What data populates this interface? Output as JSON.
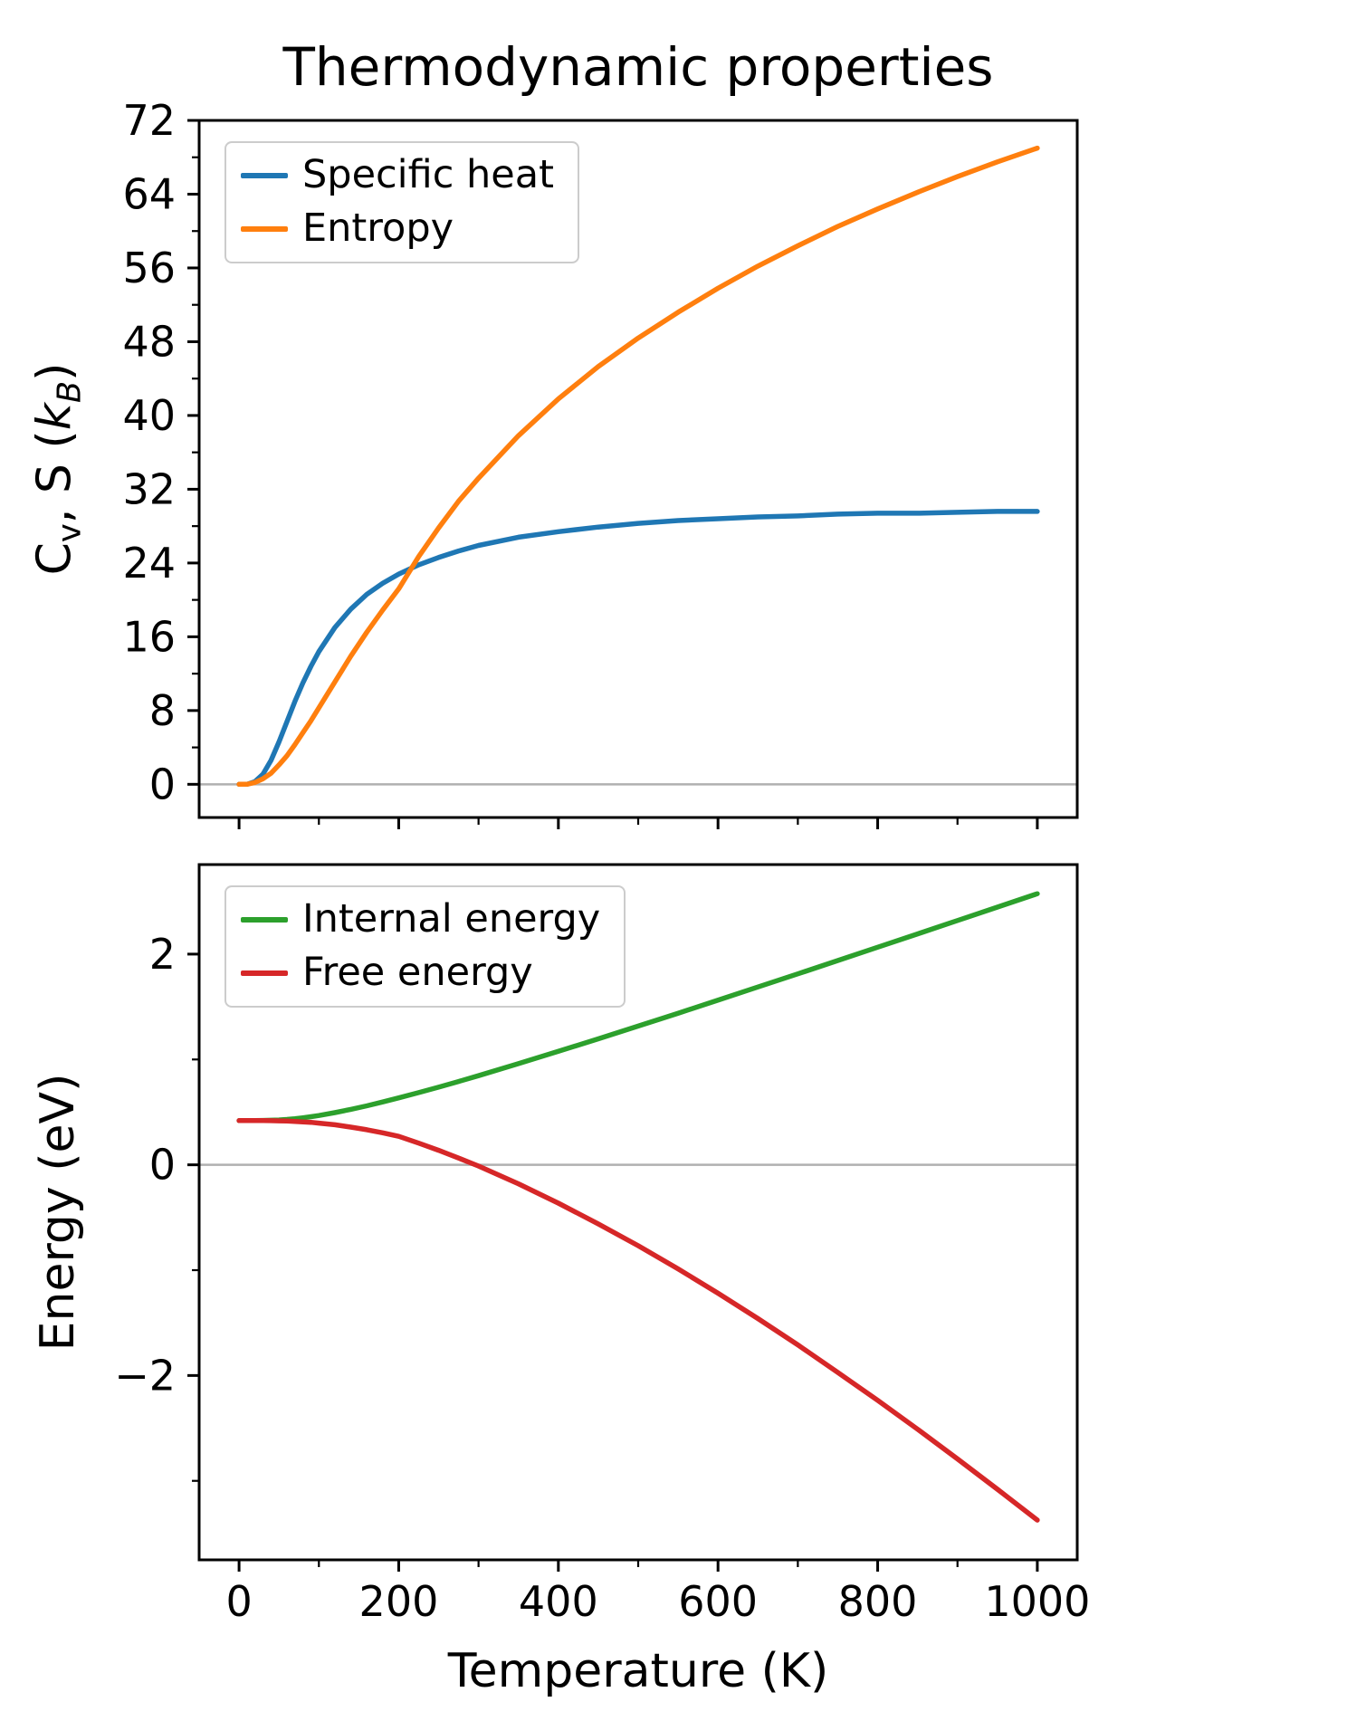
{
  "title": "Thermodynamic properties",
  "colors": {
    "axis": "#000000",
    "zero_line": "#b0b0b0",
    "legend_border": "#cccccc",
    "specific_heat": "#1f77b4",
    "entropy": "#ff7f0e",
    "internal_energy": "#2ca02c",
    "free_energy": "#d62728"
  },
  "chart_data": [
    {
      "type": "line",
      "ylabel": "C_v, S (k_B)",
      "ylabel_html": "C<sub>v</sub>, S (<i>k<sub>B</sub></i>)",
      "xlabel": "",
      "x": [
        0,
        10,
        20,
        30,
        40,
        50,
        60,
        70,
        80,
        90,
        100,
        120,
        140,
        160,
        180,
        200,
        225,
        250,
        275,
        300,
        350,
        400,
        450,
        500,
        550,
        600,
        650,
        700,
        750,
        800,
        850,
        900,
        950,
        1000
      ],
      "series": [
        {
          "name": "Specific heat",
          "color": "#1f77b4",
          "values": [
            0,
            0.0,
            0.3,
            1.1,
            2.6,
            4.6,
            6.8,
            9.0,
            11.0,
            12.8,
            14.4,
            17.0,
            19.0,
            20.6,
            21.8,
            22.8,
            23.8,
            24.6,
            25.3,
            25.9,
            26.8,
            27.4,
            27.9,
            28.3,
            28.6,
            28.8,
            29.0,
            29.1,
            29.3,
            29.4,
            29.4,
            29.5,
            29.6,
            29.6
          ]
        },
        {
          "name": "Entropy",
          "color": "#ff7f0e",
          "values": [
            0,
            0.0,
            0.2,
            0.6,
            1.2,
            2.1,
            3.1,
            4.3,
            5.6,
            6.9,
            8.3,
            11.1,
            13.9,
            16.5,
            18.9,
            21.2,
            24.7,
            27.8,
            30.7,
            33.2,
            37.8,
            41.8,
            45.3,
            48.4,
            51.2,
            53.8,
            56.2,
            58.4,
            60.5,
            62.4,
            64.2,
            65.9,
            67.5,
            69.0
          ]
        }
      ],
      "xlim": [
        -50,
        1050
      ],
      "ylim": [
        -3.6,
        72
      ],
      "xticks": [
        0,
        200,
        400,
        600,
        800,
        1000
      ],
      "yticks": [
        0,
        8,
        16,
        24,
        32,
        40,
        48,
        56,
        64,
        72
      ],
      "x_minor": [
        100,
        300,
        500,
        700,
        900
      ],
      "y_minor": [
        4,
        12,
        20,
        28,
        36,
        44,
        52,
        60,
        68
      ],
      "zero_line": true,
      "legend_position": "upper left",
      "show_x_tick_labels": false,
      "grid": false
    },
    {
      "type": "line",
      "ylabel": "Energy (eV)",
      "ylabel_html": "Energy (eV)",
      "xlabel": "Temperature (K)",
      "x": [
        0,
        10,
        20,
        30,
        40,
        50,
        60,
        70,
        80,
        90,
        100,
        120,
        140,
        160,
        180,
        200,
        225,
        250,
        275,
        300,
        350,
        400,
        450,
        500,
        550,
        600,
        650,
        700,
        750,
        800,
        850,
        900,
        950,
        1000
      ],
      "series": [
        {
          "name": "Internal energy",
          "color": "#2ca02c",
          "values": [
            0.42,
            0.42,
            0.42,
            0.421,
            0.423,
            0.426,
            0.431,
            0.438,
            0.446,
            0.457,
            0.468,
            0.495,
            0.526,
            0.56,
            0.597,
            0.635,
            0.685,
            0.737,
            0.791,
            0.846,
            0.96,
            1.077,
            1.196,
            1.317,
            1.439,
            1.563,
            1.688,
            1.813,
            1.939,
            2.065,
            2.192,
            2.319,
            2.446,
            2.573
          ]
        },
        {
          "name": "Free energy",
          "color": "#d62728",
          "values": [
            0.42,
            0.42,
            0.42,
            0.42,
            0.419,
            0.417,
            0.415,
            0.412,
            0.408,
            0.403,
            0.396,
            0.38,
            0.358,
            0.333,
            0.304,
            0.27,
            0.206,
            0.138,
            0.064,
            -0.012,
            -0.18,
            -0.364,
            -0.561,
            -0.768,
            -0.988,
            -1.219,
            -1.46,
            -1.71,
            -1.971,
            -2.236,
            -2.51,
            -2.792,
            -3.08,
            -3.373
          ]
        }
      ],
      "xlim": [
        -50,
        1050
      ],
      "ylim": [
        -3.75,
        2.85
      ],
      "xticks": [
        0,
        200,
        400,
        600,
        800,
        1000
      ],
      "yticks": [
        -2,
        0,
        2
      ],
      "x_minor": [
        100,
        300,
        500,
        700,
        900
      ],
      "y_minor": [
        -3,
        -1,
        1
      ],
      "zero_line": true,
      "legend_position": "upper left",
      "show_x_tick_labels": true,
      "grid": false
    }
  ]
}
